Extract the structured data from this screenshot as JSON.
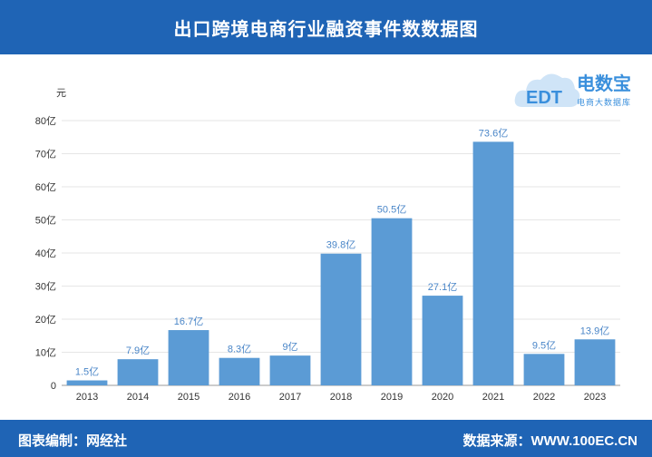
{
  "header": {
    "title": "出口跨境电商行业融资事件数数据图"
  },
  "footer": {
    "left": "图表编制：网经社",
    "right": "数据来源：WWW.100EC.CN"
  },
  "logo": {
    "brand": "电数宝",
    "sub": "电商大数据库",
    "mark": "EDT",
    "icon": "cloud-logo-icon",
    "color": "#3a8fdc"
  },
  "chart_data": {
    "type": "bar",
    "title": "出口跨境电商行业融资事件数数据图",
    "ylabel": "元",
    "categories": [
      "2013",
      "2014",
      "2015",
      "2016",
      "2017",
      "2018",
      "2019",
      "2020",
      "2021",
      "2022",
      "2023"
    ],
    "values": [
      1.5,
      7.9,
      16.7,
      8.3,
      9,
      39.8,
      50.5,
      27.1,
      73.6,
      9.5,
      13.9
    ],
    "data_labels": [
      "1.5亿",
      "7.9亿",
      "16.7亿",
      "8.3亿",
      "9亿",
      "39.8亿",
      "50.5亿",
      "27.1亿",
      "73.6亿",
      "9.5亿",
      "13.9亿"
    ],
    "yticks": [
      0,
      10,
      20,
      30,
      40,
      50,
      60,
      70,
      80
    ],
    "ytick_labels": [
      "0",
      "10亿",
      "20亿",
      "30亿",
      "40亿",
      "50亿",
      "60亿",
      "70亿",
      "80亿"
    ],
    "ylim": [
      0,
      80
    ],
    "grid": true,
    "bar_color": "#5b9bd5",
    "label_color": "#4a86c8"
  }
}
